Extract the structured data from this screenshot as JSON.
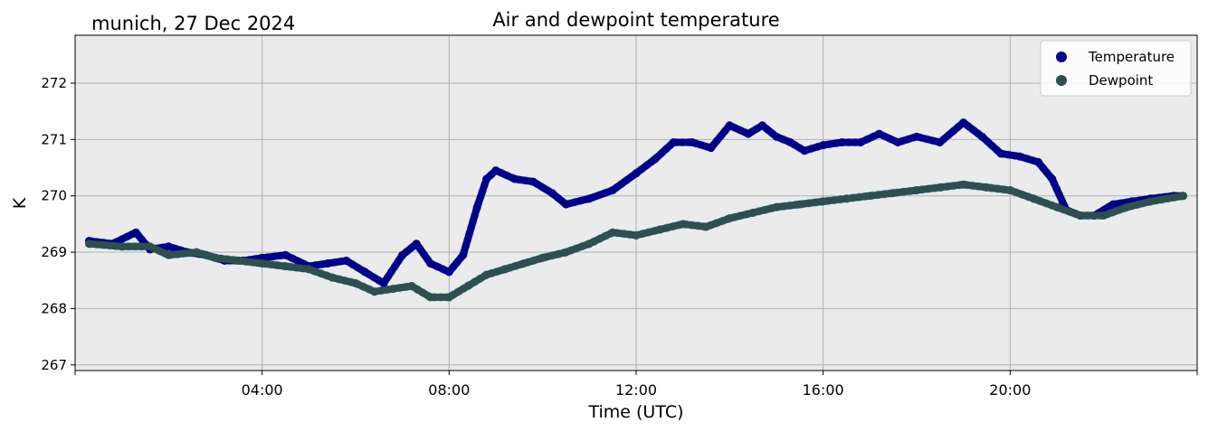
{
  "chart_data": {
    "type": "line",
    "title": "Air and dewpoint temperature",
    "subtitle": "munich, 27 Dec 2024",
    "xlabel": "Time (UTC)",
    "ylabel": "K",
    "x_unit": "hour_utc",
    "xlim": [
      0,
      24
    ],
    "ylim": [
      266.9,
      272.85
    ],
    "xticks": [
      {
        "x": 4,
        "label": "04:00"
      },
      {
        "x": 8,
        "label": "08:00"
      },
      {
        "x": 12,
        "label": "12:00"
      },
      {
        "x": 16,
        "label": "16:00"
      },
      {
        "x": 20,
        "label": "20:00"
      }
    ],
    "yticks": [
      {
        "y": 267,
        "label": "267"
      },
      {
        "y": 268,
        "label": "268"
      },
      {
        "y": 269,
        "label": "269"
      },
      {
        "y": 270,
        "label": "270"
      },
      {
        "y": 271,
        "label": "271"
      },
      {
        "y": 272,
        "label": "272"
      }
    ],
    "grid": true,
    "background": "#ebebeb",
    "legend_position": "top-right",
    "series": [
      {
        "name": "Temperature",
        "color": "#00008b",
        "raw_color": "#6fa8a8",
        "x": [
          0.3,
          0.8,
          1.3,
          1.6,
          2.0,
          2.4,
          2.8,
          3.2,
          3.6,
          4.0,
          4.5,
          5.0,
          5.4,
          5.8,
          6.2,
          6.6,
          7.0,
          7.3,
          7.6,
          8.0,
          8.3,
          8.6,
          8.8,
          9.0,
          9.4,
          9.8,
          10.2,
          10.5,
          11.0,
          11.5,
          12.0,
          12.4,
          12.8,
          13.2,
          13.6,
          14.0,
          14.4,
          14.7,
          15.0,
          15.3,
          15.6,
          16.0,
          16.4,
          16.8,
          17.2,
          17.6,
          18.0,
          18.5,
          19.0,
          19.4,
          19.8,
          20.2,
          20.6,
          20.9,
          21.2,
          21.5,
          21.8,
          22.2,
          22.6,
          23.0,
          23.5,
          23.7
        ],
        "y": [
          269.2,
          269.15,
          269.35,
          269.05,
          269.1,
          269.0,
          268.95,
          268.85,
          268.85,
          268.9,
          268.95,
          268.75,
          268.8,
          268.85,
          268.65,
          268.45,
          268.95,
          269.15,
          268.8,
          268.65,
          268.95,
          269.8,
          270.3,
          270.45,
          270.3,
          270.25,
          270.05,
          269.85,
          269.95,
          270.1,
          270.4,
          270.65,
          270.95,
          270.95,
          270.85,
          271.25,
          271.1,
          271.25,
          271.05,
          270.95,
          270.8,
          270.9,
          270.95,
          270.95,
          271.1,
          270.95,
          271.05,
          270.95,
          271.3,
          271.05,
          270.75,
          270.7,
          270.6,
          270.3,
          269.75,
          269.65,
          269.65,
          269.85,
          269.9,
          269.95,
          270.0,
          270.0
        ]
      },
      {
        "name": "Dewpoint",
        "color": "#2f4f4f",
        "raw_color": "#1e9be8",
        "x": [
          0.3,
          1.0,
          1.6,
          2.0,
          2.6,
          3.0,
          3.5,
          4.0,
          4.5,
          5.0,
          5.5,
          6.0,
          6.4,
          6.8,
          7.2,
          7.6,
          8.0,
          8.4,
          8.8,
          9.2,
          9.6,
          10.0,
          10.5,
          11.0,
          11.5,
          12.0,
          12.5,
          13.0,
          13.5,
          14.0,
          14.5,
          15.0,
          15.5,
          16.0,
          16.5,
          17.0,
          17.5,
          18.0,
          18.5,
          19.0,
          19.5,
          20.0,
          20.5,
          21.0,
          21.5,
          22.0,
          22.5,
          23.0,
          23.7
        ],
        "y": [
          269.15,
          269.1,
          269.1,
          268.95,
          269.0,
          268.9,
          268.85,
          268.8,
          268.75,
          268.7,
          268.55,
          268.45,
          268.3,
          268.35,
          268.4,
          268.2,
          268.2,
          268.4,
          268.6,
          268.7,
          268.8,
          268.9,
          269.0,
          269.15,
          269.35,
          269.3,
          269.4,
          269.5,
          269.45,
          269.6,
          269.7,
          269.8,
          269.85,
          269.9,
          269.95,
          270.0,
          270.05,
          270.1,
          270.15,
          270.2,
          270.15,
          270.1,
          269.95,
          269.8,
          269.65,
          269.65,
          269.8,
          269.9,
          270.0
        ]
      }
    ]
  }
}
